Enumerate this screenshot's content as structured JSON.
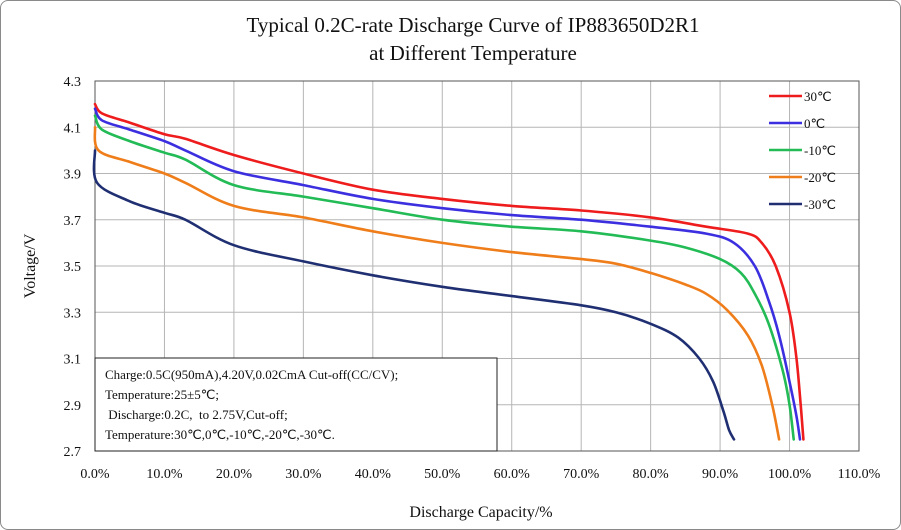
{
  "chart_data": {
    "type": "line",
    "title": "Typical 0.2C-rate Discharge Curve of  IP883650D2R1",
    "subtitle": "at Different Temperature",
    "xlabel": "Discharge Capacity/%",
    "ylabel": "Voltage/V",
    "xlim": [
      0,
      110
    ],
    "ylim": [
      2.7,
      4.3
    ],
    "x_ticks": [
      0,
      10,
      20,
      30,
      40,
      50,
      60,
      70,
      80,
      90,
      100,
      110
    ],
    "x_tick_labels": [
      "0.0%",
      "10.0%",
      "20.0%",
      "30.0%",
      "40.0%",
      "50.0%",
      "60.0%",
      "70.0%",
      "80.0%",
      "90.0%",
      "100.0%",
      "110.0%"
    ],
    "y_ticks": [
      2.7,
      2.9,
      3.1,
      3.3,
      3.5,
      3.7,
      3.9,
      4.1,
      4.3
    ],
    "y_tick_labels": [
      "2.7",
      "2.9",
      "3.1",
      "3.3",
      "3.5",
      "3.7",
      "3.9",
      "4.1",
      "4.3"
    ],
    "grid": true,
    "legend_position": "top-right",
    "series": [
      {
        "name": "30℃",
        "color": "#ee1c1c",
        "points": [
          [
            0,
            4.2
          ],
          [
            1,
            4.16
          ],
          [
            5,
            4.12
          ],
          [
            10,
            4.07
          ],
          [
            13,
            4.05
          ],
          [
            20,
            3.98
          ],
          [
            30,
            3.9
          ],
          [
            40,
            3.83
          ],
          [
            50,
            3.79
          ],
          [
            60,
            3.76
          ],
          [
            70,
            3.74
          ],
          [
            80,
            3.71
          ],
          [
            88,
            3.67
          ],
          [
            94,
            3.64
          ],
          [
            96,
            3.6
          ],
          [
            98,
            3.5
          ],
          [
            100,
            3.3
          ],
          [
            101,
            3.1
          ],
          [
            101.6,
            2.9
          ],
          [
            102,
            2.75
          ]
        ]
      },
      {
        "name": "0℃",
        "color": "#3b2fe0",
        "points": [
          [
            0,
            4.18
          ],
          [
            1,
            4.13
          ],
          [
            5,
            4.09
          ],
          [
            10,
            4.04
          ],
          [
            13,
            4.0
          ],
          [
            20,
            3.91
          ],
          [
            30,
            3.85
          ],
          [
            40,
            3.79
          ],
          [
            50,
            3.75
          ],
          [
            60,
            3.72
          ],
          [
            70,
            3.7
          ],
          [
            80,
            3.67
          ],
          [
            88,
            3.64
          ],
          [
            92,
            3.6
          ],
          [
            95,
            3.5
          ],
          [
            97,
            3.35
          ],
          [
            98.5,
            3.2
          ],
          [
            100,
            3.0
          ],
          [
            101,
            2.85
          ],
          [
            101.5,
            2.75
          ]
        ]
      },
      {
        "name": "-10℃",
        "color": "#22bb55",
        "points": [
          [
            0,
            4.15
          ],
          [
            1,
            4.09
          ],
          [
            5,
            4.04
          ],
          [
            10,
            3.99
          ],
          [
            13,
            3.96
          ],
          [
            20,
            3.85
          ],
          [
            30,
            3.8
          ],
          [
            40,
            3.75
          ],
          [
            50,
            3.7
          ],
          [
            60,
            3.67
          ],
          [
            70,
            3.65
          ],
          [
            80,
            3.61
          ],
          [
            85,
            3.58
          ],
          [
            90,
            3.53
          ],
          [
            93,
            3.47
          ],
          [
            95,
            3.38
          ],
          [
            97,
            3.25
          ],
          [
            99,
            3.05
          ],
          [
            100,
            2.9
          ],
          [
            100.6,
            2.75
          ]
        ]
      },
      {
        "name": "-20℃",
        "color": "#ef7d1a",
        "points": [
          [
            0,
            4.1
          ],
          [
            0.5,
            4.0
          ],
          [
            5,
            3.95
          ],
          [
            10,
            3.9
          ],
          [
            13,
            3.86
          ],
          [
            20,
            3.76
          ],
          [
            30,
            3.71
          ],
          [
            40,
            3.65
          ],
          [
            50,
            3.6
          ],
          [
            60,
            3.56
          ],
          [
            70,
            3.53
          ],
          [
            75,
            3.51
          ],
          [
            80,
            3.47
          ],
          [
            85,
            3.42
          ],
          [
            88,
            3.38
          ],
          [
            91,
            3.31
          ],
          [
            94,
            3.2
          ],
          [
            96,
            3.07
          ],
          [
            97.5,
            2.9
          ],
          [
            98.5,
            2.75
          ]
        ]
      },
      {
        "name": "-30℃",
        "color": "#1f2f72",
        "points": [
          [
            0,
            4.0
          ],
          [
            0.3,
            3.86
          ],
          [
            5,
            3.78
          ],
          [
            10,
            3.73
          ],
          [
            13,
            3.7
          ],
          [
            20,
            3.59
          ],
          [
            30,
            3.52
          ],
          [
            40,
            3.46
          ],
          [
            50,
            3.41
          ],
          [
            60,
            3.37
          ],
          [
            70,
            3.33
          ],
          [
            75,
            3.3
          ],
          [
            80,
            3.25
          ],
          [
            84,
            3.19
          ],
          [
            87,
            3.1
          ],
          [
            89,
            3.0
          ],
          [
            90.5,
            2.87
          ],
          [
            91.3,
            2.79
          ],
          [
            92,
            2.75
          ]
        ]
      }
    ]
  },
  "note_lines": [
    "Charge:0.5C(950mA),4.20V,0.02CmA Cut-off(CC/CV);",
    "Temperature:25±5℃;",
    " Discharge:0.2C,  to 2.75V,Cut-off;",
    "Temperature:30℃,0℃,-10℃,-20℃,-30℃."
  ]
}
